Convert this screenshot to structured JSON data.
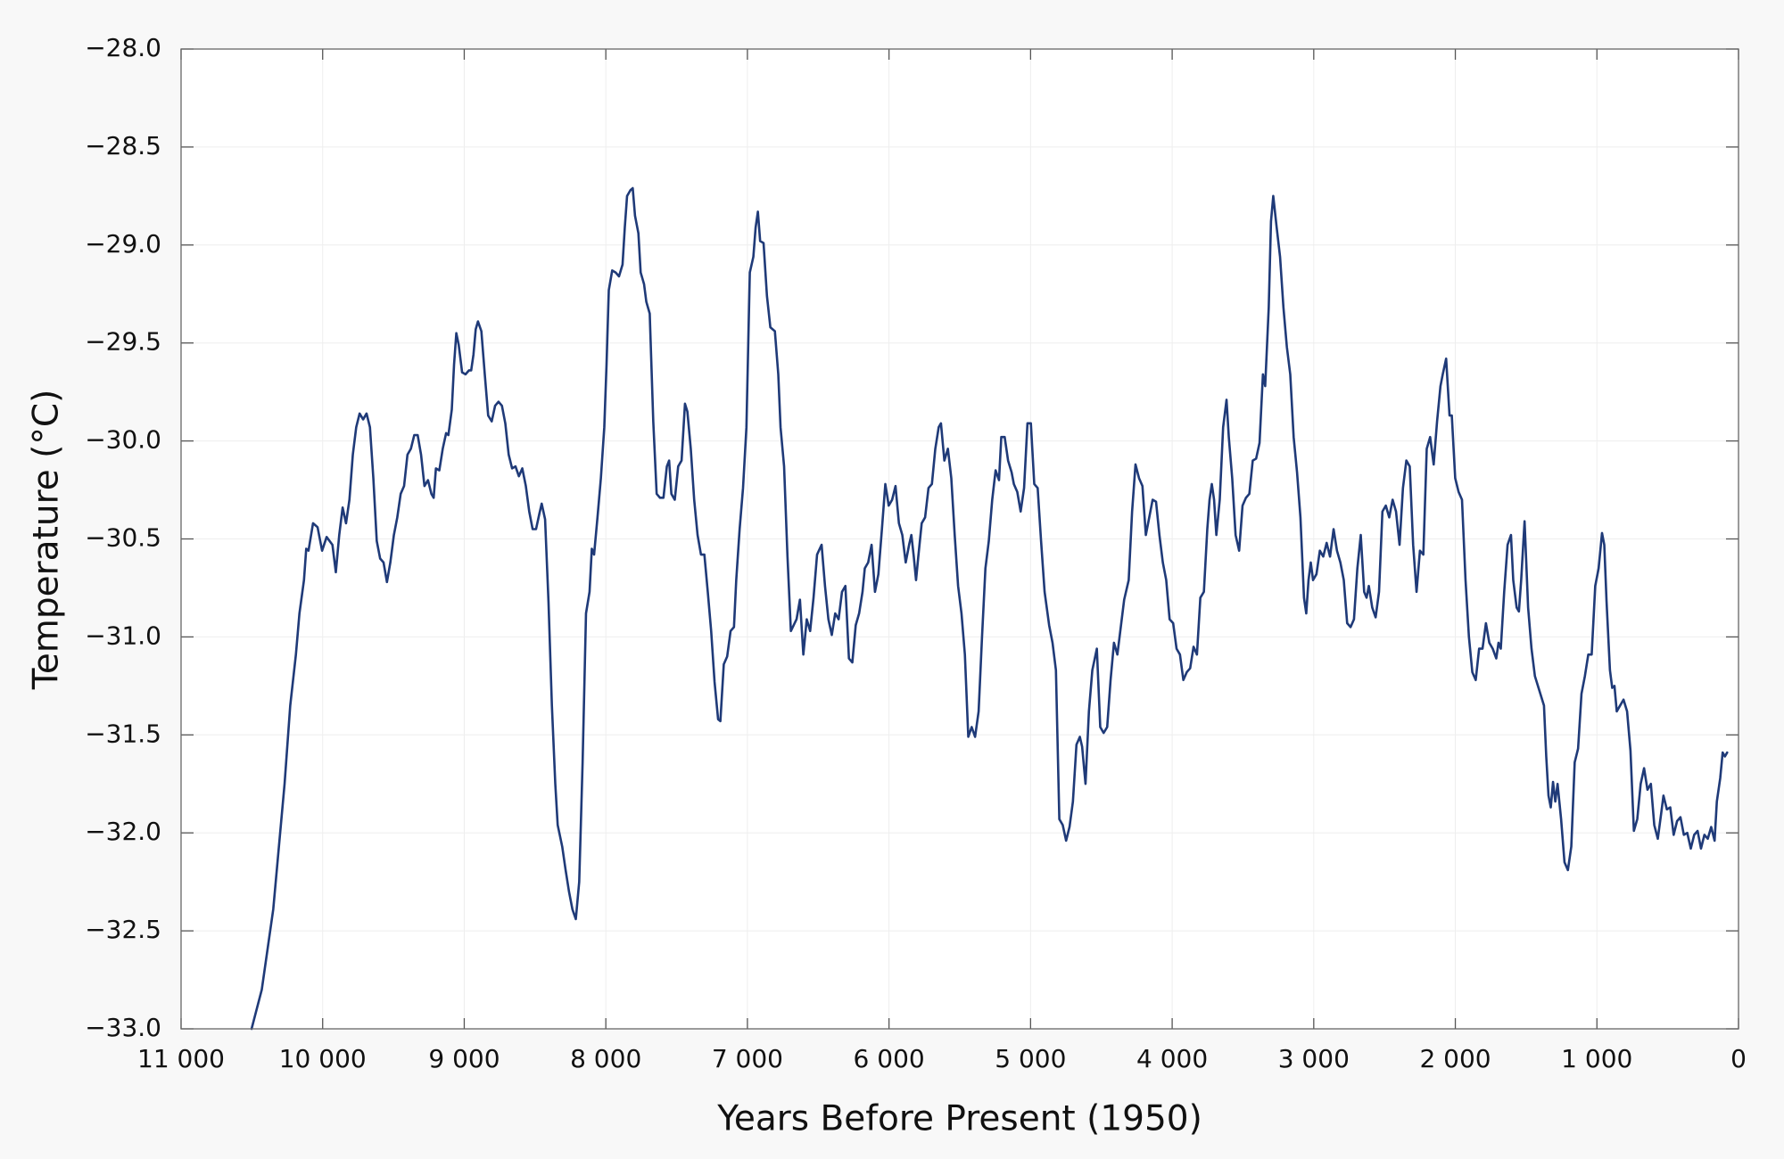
{
  "chart_data": {
    "type": "line",
    "xlabel": "Years Before Present (1950)",
    "ylabel": "Temperature (°C)",
    "color": "#1f3a78",
    "grid": true,
    "xlim": [
      11000,
      0
    ],
    "ylim": [
      -33,
      -28
    ],
    "xticks": [
      {
        "value": 11000,
        "label": "11 000"
      },
      {
        "value": 10000,
        "label": "10 000"
      },
      {
        "value": 9000,
        "label": "9 000"
      },
      {
        "value": 8000,
        "label": "8 000"
      },
      {
        "value": 7000,
        "label": "7 000"
      },
      {
        "value": 6000,
        "label": "6 000"
      },
      {
        "value": 5000,
        "label": "5 000"
      },
      {
        "value": 4000,
        "label": "4 000"
      },
      {
        "value": 3000,
        "label": "3 000"
      },
      {
        "value": 2000,
        "label": "2 000"
      },
      {
        "value": 1000,
        "label": "1 000"
      },
      0
    ],
    "yticks": [
      {
        "value": -33,
        "label": "−33.0"
      },
      {
        "value": -32.5,
        "label": "−32.5"
      },
      {
        "value": -32,
        "label": "−32.0"
      },
      {
        "value": -31.5,
        "label": "−31.5"
      },
      {
        "value": -31,
        "label": "−31.0"
      },
      {
        "value": -30.5,
        "label": "−30.5"
      },
      {
        "value": -30,
        "label": "−30.0"
      },
      {
        "value": -29.5,
        "label": "−29.5"
      },
      {
        "value": -29,
        "label": "−29.0"
      },
      {
        "value": -28.5,
        "label": "−28.5"
      },
      {
        "value": -28,
        "label": "−28.0"
      }
    ],
    "x": [
      10502,
      10430,
      10349,
      10269,
      10229,
      10189,
      10164,
      10132,
      10116,
      10100,
      10068,
      10036,
      10004,
      9972,
      9931,
      9907,
      9883,
      9859,
      9835,
      9811,
      9787,
      9763,
      9739,
      9714,
      9690,
      9666,
      9642,
      9618,
      9594,
      9570,
      9546,
      9522,
      9497,
      9473,
      9449,
      9425,
      9401,
      9377,
      9353,
      9329,
      9305,
      9281,
      9256,
      9232,
      9216,
      9200,
      9176,
      9152,
      9128,
      9112,
      9088,
      9072,
      9056,
      9039,
      9015,
      8991,
      8967,
      8951,
      8935,
      8919,
      8903,
      8879,
      8855,
      8831,
      8806,
      8782,
      8758,
      8734,
      8710,
      8686,
      8662,
      8638,
      8614,
      8590,
      8565,
      8541,
      8517,
      8493,
      8469,
      8453,
      8429,
      8405,
      8381,
      8357,
      8340,
      8308,
      8284,
      8260,
      8236,
      8212,
      8188,
      8164,
      8140,
      8115,
      8099,
      8083,
      8059,
      8035,
      8011,
      7995,
      7979,
      7955,
      7931,
      7907,
      7882,
      7866,
      7850,
      7826,
      7810,
      7794,
      7770,
      7754,
      7730,
      7714,
      7690,
      7665,
      7641,
      7617,
      7593,
      7569,
      7553,
      7537,
      7513,
      7489,
      7465,
      7441,
      7424,
      7400,
      7376,
      7352,
      7328,
      7304,
      7280,
      7256,
      7232,
      7207,
      7191,
      7167,
      7143,
      7119,
      7095,
      7079,
      7055,
      7031,
      7007,
      6983,
      6958,
      6942,
      6926,
      6910,
      6886,
      6862,
      6838,
      6806,
      6782,
      6766,
      6741,
      6717,
      6693,
      6653,
      6629,
      6605,
      6581,
      6557,
      6533,
      6508,
      6476,
      6452,
      6428,
      6404,
      6380,
      6356,
      6332,
      6308,
      6283,
      6259,
      6235,
      6211,
      6187,
      6171,
      6147,
      6123,
      6099,
      6075,
      6050,
      6026,
      6002,
      5978,
      5954,
      5930,
      5906,
      5882,
      5858,
      5842,
      5825,
      5809,
      5793,
      5769,
      5745,
      5721,
      5697,
      5673,
      5649,
      5633,
      5609,
      5584,
      5560,
      5536,
      5512,
      5488,
      5464,
      5440,
      5416,
      5392,
      5367,
      5343,
      5319,
      5295,
      5271,
      5247,
      5223,
      5207,
      5183,
      5159,
      5134,
      5118,
      5094,
      5070,
      5046,
      5022,
      4998,
      4974,
      4950,
      4926,
      4901,
      4869,
      4845,
      4821,
      4797,
      4773,
      4749,
      4725,
      4701,
      4676,
      4652,
      4636,
      4612,
      4588,
      4564,
      4532,
      4508,
      4484,
      4459,
      4435,
      4411,
      4387,
      4363,
      4339,
      4307,
      4283,
      4259,
      4234,
      4210,
      4186,
      4162,
      4138,
      4114,
      4090,
      4066,
      4042,
      4018,
      3993,
      3969,
      3945,
      3921,
      3897,
      3873,
      3849,
      3825,
      3801,
      3776,
      3752,
      3736,
      3720,
      3704,
      3688,
      3664,
      3640,
      3616,
      3600,
      3576,
      3552,
      3527,
      3503,
      3479,
      3455,
      3431,
      3407,
      3383,
      3359,
      3343,
      3318,
      3302,
      3286,
      3262,
      3238,
      3214,
      3190,
      3166,
      3142,
      3118,
      3094,
      3069,
      3053,
      3037,
      3021,
      3005,
      2981,
      2957,
      2933,
      2909,
      2885,
      2860,
      2836,
      2812,
      2788,
      2764,
      2740,
      2716,
      2692,
      2668,
      2644,
      2627,
      2611,
      2587,
      2563,
      2539,
      2515,
      2491,
      2467,
      2443,
      2419,
      2394,
      2370,
      2346,
      2322,
      2298,
      2274,
      2250,
      2226,
      2202,
      2178,
      2153,
      2129,
      2105,
      2089,
      2065,
      2041,
      2025,
      2001,
      1977,
      1953,
      1928,
      1904,
      1880,
      1856,
      1832,
      1808,
      1784,
      1760,
      1736,
      1711,
      1695,
      1679,
      1655,
      1631,
      1607,
      1591,
      1567,
      1551,
      1535,
      1511,
      1486,
      1462,
      1438,
      1374,
      1358,
      1342,
      1326,
      1310,
      1294,
      1278,
      1253,
      1229,
      1205,
      1181,
      1157,
      1133,
      1109,
      1085,
      1061,
      1037,
      1012,
      988,
      964,
      948,
      932,
      908,
      892,
      876,
      860,
      836,
      812,
      787,
      763,
      739,
      715,
      691,
      667,
      643,
      619,
      595,
      570,
      546,
      530,
      506,
      482,
      458,
      434,
      410,
      386,
      362,
      337,
      313,
      289,
      265,
      241,
      217,
      193,
      169,
      153,
      129,
      112,
      96,
      80
    ],
    "values": [
      -33.0,
      -32.8,
      -32.39,
      -31.75,
      -31.35,
      -31.09,
      -30.88,
      -30.71,
      -30.55,
      -30.56,
      -30.42,
      -30.44,
      -30.56,
      -30.49,
      -30.53,
      -30.67,
      -30.48,
      -30.34,
      -30.42,
      -30.3,
      -30.07,
      -29.93,
      -29.86,
      -29.89,
      -29.86,
      -29.93,
      -30.19,
      -30.51,
      -30.6,
      -30.62,
      -30.72,
      -30.62,
      -30.48,
      -30.39,
      -30.27,
      -30.23,
      -30.07,
      -30.04,
      -29.97,
      -29.97,
      -30.07,
      -30.23,
      -30.2,
      -30.27,
      -30.29,
      -30.14,
      -30.15,
      -30.04,
      -29.96,
      -29.97,
      -29.84,
      -29.61,
      -29.45,
      -29.51,
      -29.65,
      -29.66,
      -29.64,
      -29.64,
      -29.56,
      -29.43,
      -29.39,
      -29.44,
      -29.66,
      -29.87,
      -29.9,
      -29.82,
      -29.8,
      -29.82,
      -29.91,
      -30.07,
      -30.14,
      -30.13,
      -30.18,
      -30.14,
      -30.23,
      -30.36,
      -30.45,
      -30.45,
      -30.37,
      -30.32,
      -30.4,
      -30.82,
      -31.35,
      -31.75,
      -31.96,
      -32.07,
      -32.19,
      -32.3,
      -32.39,
      -32.44,
      -32.25,
      -31.64,
      -30.88,
      -30.77,
      -30.55,
      -30.58,
      -30.39,
      -30.19,
      -29.93,
      -29.61,
      -29.23,
      -29.13,
      -29.14,
      -29.16,
      -29.1,
      -28.91,
      -28.75,
      -28.72,
      -28.71,
      -28.85,
      -28.94,
      -29.14,
      -29.2,
      -29.29,
      -29.35,
      -29.9,
      -30.27,
      -30.29,
      -30.29,
      -30.13,
      -30.1,
      -30.27,
      -30.3,
      -30.13,
      -30.1,
      -29.81,
      -29.85,
      -30.04,
      -30.3,
      -30.48,
      -30.58,
      -30.58,
      -30.77,
      -30.97,
      -31.23,
      -31.42,
      -31.43,
      -31.14,
      -31.1,
      -30.97,
      -30.95,
      -30.71,
      -30.45,
      -30.24,
      -29.93,
      -29.14,
      -29.06,
      -28.91,
      -28.83,
      -28.98,
      -28.99,
      -29.26,
      -29.42,
      -29.44,
      -29.66,
      -29.93,
      -30.13,
      -30.59,
      -30.97,
      -30.91,
      -30.81,
      -31.09,
      -30.91,
      -30.97,
      -30.8,
      -30.58,
      -30.53,
      -30.74,
      -30.91,
      -30.99,
      -30.88,
      -30.91,
      -30.77,
      -30.74,
      -31.11,
      -31.13,
      -30.94,
      -30.88,
      -30.77,
      -30.65,
      -30.62,
      -30.53,
      -30.77,
      -30.68,
      -30.45,
      -30.22,
      -30.33,
      -30.3,
      -30.23,
      -30.42,
      -30.48,
      -30.62,
      -30.53,
      -30.48,
      -30.59,
      -30.71,
      -30.59,
      -30.42,
      -30.39,
      -30.24,
      -30.22,
      -30.04,
      -29.93,
      -29.91,
      -30.1,
      -30.04,
      -30.19,
      -30.48,
      -30.74,
      -30.88,
      -31.09,
      -31.51,
      -31.46,
      -31.51,
      -31.38,
      -31.0,
      -30.65,
      -30.51,
      -30.3,
      -30.15,
      -30.2,
      -29.98,
      -29.98,
      -30.1,
      -30.16,
      -30.22,
      -30.26,
      -30.36,
      -30.24,
      -29.91,
      -29.91,
      -30.22,
      -30.24,
      -30.51,
      -30.77,
      -30.94,
      -31.03,
      -31.17,
      -31.93,
      -31.96,
      -32.04,
      -31.97,
      -31.84,
      -31.55,
      -31.51,
      -31.56,
      -31.75,
      -31.38,
      -31.17,
      -31.06,
      -31.46,
      -31.49,
      -31.46,
      -31.22,
      -31.03,
      -31.09,
      -30.95,
      -30.81,
      -30.71,
      -30.36,
      -30.12,
      -30.19,
      -30.23,
      -30.48,
      -30.39,
      -30.3,
      -30.31,
      -30.48,
      -30.62,
      -30.71,
      -30.91,
      -30.93,
      -31.06,
      -31.09,
      -31.22,
      -31.18,
      -31.16,
      -31.05,
      -31.09,
      -30.8,
      -30.77,
      -30.45,
      -30.3,
      -30.22,
      -30.3,
      -30.48,
      -30.3,
      -29.93,
      -29.79,
      -29.98,
      -30.19,
      -30.48,
      -30.56,
      -30.33,
      -30.29,
      -30.27,
      -30.1,
      -30.09,
      -30.01,
      -29.66,
      -29.72,
      -29.32,
      -28.88,
      -28.75,
      -28.91,
      -29.06,
      -29.32,
      -29.52,
      -29.66,
      -29.98,
      -30.16,
      -30.39,
      -30.8,
      -30.88,
      -30.71,
      -30.62,
      -30.71,
      -30.68,
      -30.56,
      -30.59,
      -30.52,
      -30.59,
      -30.45,
      -30.56,
      -30.62,
      -30.71,
      -30.93,
      -30.95,
      -30.91,
      -30.65,
      -30.48,
      -30.77,
      -30.8,
      -30.74,
      -30.85,
      -30.9,
      -30.77,
      -30.36,
      -30.33,
      -30.39,
      -30.3,
      -30.36,
      -30.53,
      -30.24,
      -30.1,
      -30.13,
      -30.53,
      -30.77,
      -30.56,
      -30.58,
      -30.04,
      -29.98,
      -30.12,
      -29.9,
      -29.72,
      -29.66,
      -29.58,
      -29.87,
      -29.87,
      -30.19,
      -30.26,
      -30.3,
      -30.71,
      -31.0,
      -31.18,
      -31.22,
      -31.06,
      -31.06,
      -30.93,
      -31.03,
      -31.06,
      -31.11,
      -31.03,
      -31.06,
      -30.77,
      -30.53,
      -30.48,
      -30.71,
      -30.85,
      -30.87,
      -30.71,
      -30.41,
      -30.85,
      -31.06,
      -31.2,
      -31.35,
      -31.61,
      -31.81,
      -31.87,
      -31.74,
      -31.84,
      -31.75,
      -31.93,
      -32.15,
      -32.19,
      -32.07,
      -31.64,
      -31.57,
      -31.29,
      -31.2,
      -31.09,
      -31.09,
      -30.74,
      -30.65,
      -30.47,
      -30.53,
      -30.82,
      -31.17,
      -31.26,
      -31.25,
      -31.38,
      -31.35,
      -31.32,
      -31.38,
      -31.58,
      -31.99,
      -31.93,
      -31.75,
      -31.67,
      -31.78,
      -31.75,
      -31.96,
      -32.03,
      -31.9,
      -31.81,
      -31.88,
      -31.87,
      -32.01,
      -31.94,
      -31.92,
      -32.01,
      -32.0,
      -32.08,
      -32.01,
      -31.99,
      -32.08,
      -32.01,
      -32.03,
      -31.97,
      -32.04,
      -31.84,
      -31.72,
      -31.59,
      -31.61,
      -31.59
    ]
  }
}
